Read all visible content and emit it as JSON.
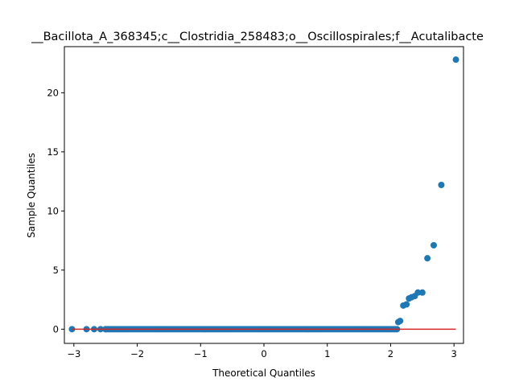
{
  "chart_data": {
    "type": "scatter",
    "title": "__Bacillota_A_368345;c__Clostridia_258483;o__Oscillospirales;f__Acutalibacte",
    "xlabel": "Theoretical Quantiles",
    "ylabel": "Sample Quantiles",
    "xlim": [
      -3.15,
      3.15
    ],
    "ylim": [
      -1.2,
      23.9
    ],
    "xticks": [
      -3,
      -2,
      -1,
      0,
      1,
      2,
      3
    ],
    "xtick_labels": [
      "−3",
      "−2",
      "−1",
      "0",
      "1",
      "2",
      "3"
    ],
    "yticks": [
      0,
      5,
      10,
      15,
      20
    ],
    "ytick_labels": [
      "0",
      "5",
      "10",
      "15",
      "20"
    ],
    "grid": false,
    "point_color": "#1f77b4",
    "line_color": "#d62728",
    "reference_line": {
      "x": [
        -3.03,
        3.03
      ],
      "y": [
        0,
        0
      ]
    },
    "zero_band": {
      "from": -2.5,
      "to": 2.1,
      "step": 0.025,
      "y": 0
    },
    "points": {
      "x": [
        -3.03,
        -2.8,
        -2.68,
        -2.58,
        -2.5,
        2.12,
        2.15,
        2.2,
        2.25,
        2.29,
        2.33,
        2.38,
        2.43,
        2.5,
        2.58,
        2.68,
        2.8,
        3.03
      ],
      "y": [
        0,
        0,
        0,
        0,
        0,
        0.6,
        0.7,
        2.0,
        2.1,
        2.6,
        2.7,
        2.8,
        3.1,
        3.1,
        6.0,
        7.1,
        12.2,
        22.8
      ]
    }
  }
}
